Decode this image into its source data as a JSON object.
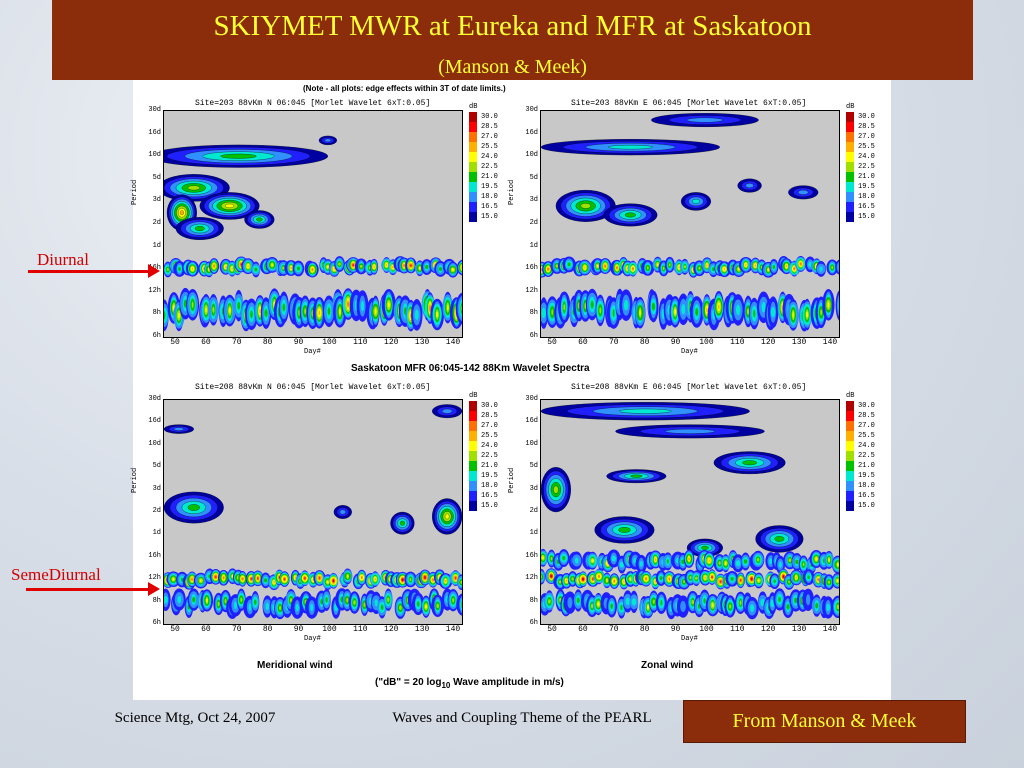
{
  "slide": {
    "title": "SKIYMET MWR at Eureka and MFR at Saskatoon",
    "subtitle": "(Manson  &  Meek)",
    "figure_note": "(Note - all plots: edge effects within 3T of date limits.)",
    "middle_caption": "Saskatoon MFR 06:045-142 88Km Wavelet Spectra",
    "bottom_left_caption": "Meridional wind",
    "bottom_right_caption": "Zonal wind",
    "db_note_prefix": "(\"dB\" = 20 log",
    "db_note_sub": "10",
    "db_note_suffix": " Wave amplitude in m/s)",
    "labels": {
      "diurnal": "Diurnal",
      "semidiurnal": "SemeDiurnal"
    },
    "footer": {
      "left": "Science Mtg, Oct 24, 2007",
      "center": "Waves and Coupling Theme of the PEARL",
      "credit": "From Manson  &  Meek"
    },
    "colors": {
      "title_bg": "#8b2c0a",
      "title_text": "#ffff33",
      "arrow": "#e00000"
    }
  },
  "chart_data": [
    {
      "type": "heatmap",
      "panel": "top-left",
      "header": "Site=203  88vKm  N   06:045 [Morlet Wavelet 6xT:0.05]",
      "xlabel": "Day#",
      "ylabel": "Period",
      "x_ticks": [
        "50",
        "60",
        "70",
        "80",
        "90",
        "100",
        "110",
        "120",
        "130",
        "140"
      ],
      "y_ticks": [
        "30d",
        "16d",
        "10d",
        "5d",
        "3d",
        "2d",
        "1d",
        "16h",
        "12h",
        "8h",
        "6h"
      ],
      "colorbar_unit": "dB",
      "colorbar_levels": [
        "30.0",
        "28.5",
        "27.0",
        "25.5",
        "24.0",
        "22.5",
        "21.0",
        "19.5",
        "18.0",
        "16.5",
        "15.0"
      ]
    },
    {
      "type": "heatmap",
      "panel": "top-right",
      "header": "Site=203  88vKm  E   06:045 [Morlet Wavelet 6xT:0.05]",
      "xlabel": "Day#",
      "ylabel": "Period",
      "x_ticks": [
        "50",
        "60",
        "70",
        "80",
        "90",
        "100",
        "110",
        "120",
        "130",
        "140"
      ],
      "y_ticks": [
        "30d",
        "16d",
        "10d",
        "5d",
        "3d",
        "2d",
        "1d",
        "16h",
        "12h",
        "8h",
        "6h"
      ],
      "colorbar_unit": "dB",
      "colorbar_levels": [
        "30.0",
        "28.5",
        "27.0",
        "25.5",
        "24.0",
        "22.5",
        "21.0",
        "19.5",
        "18.0",
        "16.5",
        "15.0"
      ]
    },
    {
      "type": "heatmap",
      "panel": "bottom-left",
      "header": "Site=208  88vKm  N   06:045 [Morlet Wavelet 6xT:0.05]",
      "xlabel": "Day#",
      "ylabel": "Period",
      "x_ticks": [
        "50",
        "60",
        "70",
        "80",
        "90",
        "100",
        "110",
        "120",
        "130",
        "140"
      ],
      "y_ticks": [
        "30d",
        "16d",
        "10d",
        "5d",
        "3d",
        "2d",
        "1d",
        "16h",
        "12h",
        "8h",
        "6h"
      ],
      "colorbar_unit": "dB",
      "colorbar_levels": [
        "30.0",
        "28.5",
        "27.0",
        "25.5",
        "24.0",
        "22.5",
        "21.0",
        "19.5",
        "18.0",
        "16.5",
        "15.0"
      ]
    },
    {
      "type": "heatmap",
      "panel": "bottom-right",
      "header": "Site=208  88vKm  E   06:045 [Morlet Wavelet 6xT:0.05]",
      "xlabel": "Day#",
      "ylabel": "Period",
      "x_ticks": [
        "50",
        "60",
        "70",
        "80",
        "90",
        "100",
        "110",
        "120",
        "130",
        "140"
      ],
      "y_ticks": [
        "30d",
        "16d",
        "10d",
        "5d",
        "3d",
        "2d",
        "1d",
        "16h",
        "12h",
        "8h",
        "6h"
      ],
      "colorbar_unit": "dB",
      "colorbar_levels": [
        "30.0",
        "28.5",
        "27.0",
        "25.5",
        "24.0",
        "22.5",
        "21.0",
        "19.5",
        "18.0",
        "16.5",
        "15.0"
      ]
    }
  ]
}
